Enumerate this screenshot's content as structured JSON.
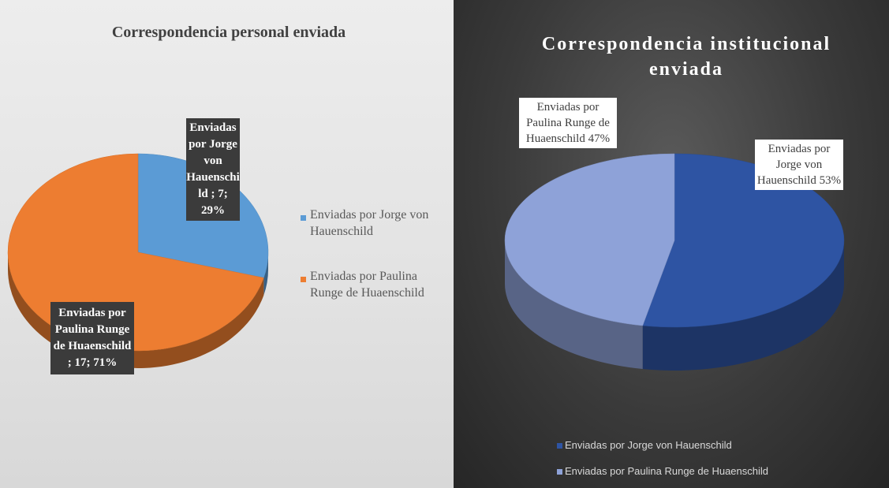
{
  "chart_data": [
    {
      "type": "pie",
      "title": "Correspondencia personal enviada",
      "categories": [
        "Enviadas por Jorge von Hauenschild",
        "Enviadas por Paulina Runge de Huaenschild"
      ],
      "values": [
        7,
        17
      ],
      "value_labels": [
        "Enviadas por Jorge von Hauenschild ; 7; 29%",
        "Enviadas por Paulina Runge de Huaenschild ; 17; 71%"
      ],
      "colors": [
        "#5b9bd5",
        "#ed7d31"
      ],
      "legend": "right"
    },
    {
      "type": "pie",
      "title": "Correspondencia institucional enviada",
      "categories": [
        "Enviadas por Jorge von Hauenschild",
        "Enviadas por Paulina Runge de Huaenschild"
      ],
      "values": [
        53,
        47
      ],
      "value_labels": [
        "Enviadas por Jorge von Hauenschild 53%",
        "Enviadas por Paulina Runge de Huaenschild 47%"
      ],
      "colors": [
        "#2e54a3",
        "#8ea2d8"
      ],
      "legend": "bottom"
    }
  ]
}
